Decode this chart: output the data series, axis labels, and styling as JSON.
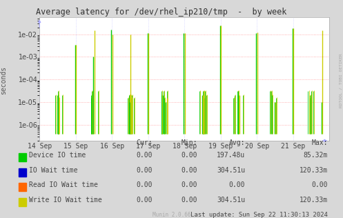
{
  "title": "Average latency for /dev/rhel_ip210/tmp  -  by week",
  "ylabel": "seconds",
  "right_label": "RDTOOL / TOBI OETIKER",
  "background_color": "#d8d8d8",
  "plot_background_color": "#ffffff",
  "grid_color_y": "#ff9999",
  "grid_color_x": "#ccccff",
  "ylim_min": 2e-07,
  "ylim_max": 0.055,
  "yticks": [
    1e-06,
    1e-05,
    0.0001,
    0.001,
    0.01
  ],
  "ytick_labels": [
    "1e-06",
    "1e-05",
    "1e-04",
    "1e-03",
    "1e-02"
  ],
  "xlabel_dates": [
    "14 Sep",
    "15 Sep",
    "16 Sep",
    "17 Sep",
    "18 Sep",
    "19 Sep",
    "20 Sep",
    "21 Sep"
  ],
  "series": {
    "device_io": {
      "label": "Device IO time",
      "color": "#00cc00",
      "cur": "0.00",
      "min": "0.00",
      "avg": "197.48u",
      "max": "85.32m"
    },
    "io_wait": {
      "label": "IO Wait time",
      "color": "#0000cc",
      "cur": "0.00",
      "min": "0.00",
      "avg": "304.51u",
      "max": "120.33m"
    },
    "read_io_wait": {
      "label": "Read IO Wait time",
      "color": "#ff6600",
      "cur": "0.00",
      "min": "0.00",
      "avg": "0.00",
      "max": "0.00"
    },
    "write_io_wait": {
      "label": "Write IO Wait time",
      "color": "#cccc00",
      "cur": "0.00",
      "min": "0.00",
      "avg": "304.51u",
      "max": "120.33m"
    }
  },
  "footer_left": "Munin 2.0.66",
  "footer_right": "Last update: Sun Sep 22 11:30:13 2024",
  "spikes": {
    "day_positions": [
      0.5,
      1.0,
      1.5,
      2.0,
      2.5,
      3.0,
      3.5,
      4.0,
      4.5,
      5.0,
      5.5,
      6.0,
      6.5,
      7.0,
      7.5
    ],
    "green_heights": [
      2e-05,
      0.003,
      1e-05,
      0.015,
      1e-05,
      0.011,
      1.5e-05,
      0.011,
      1.8e-05,
      0.025,
      2e-05,
      0.012,
      1e-05,
      0.018,
      1.5e-05
    ],
    "yellow_heights": [
      2e-05,
      0.003,
      0.017,
      0.015,
      0.01,
      0.011,
      1.5e-05,
      0.011,
      1.8e-05,
      0.025,
      2e-05,
      0.012,
      1e-05,
      0.018,
      0.015
    ],
    "base": 4e-07
  }
}
